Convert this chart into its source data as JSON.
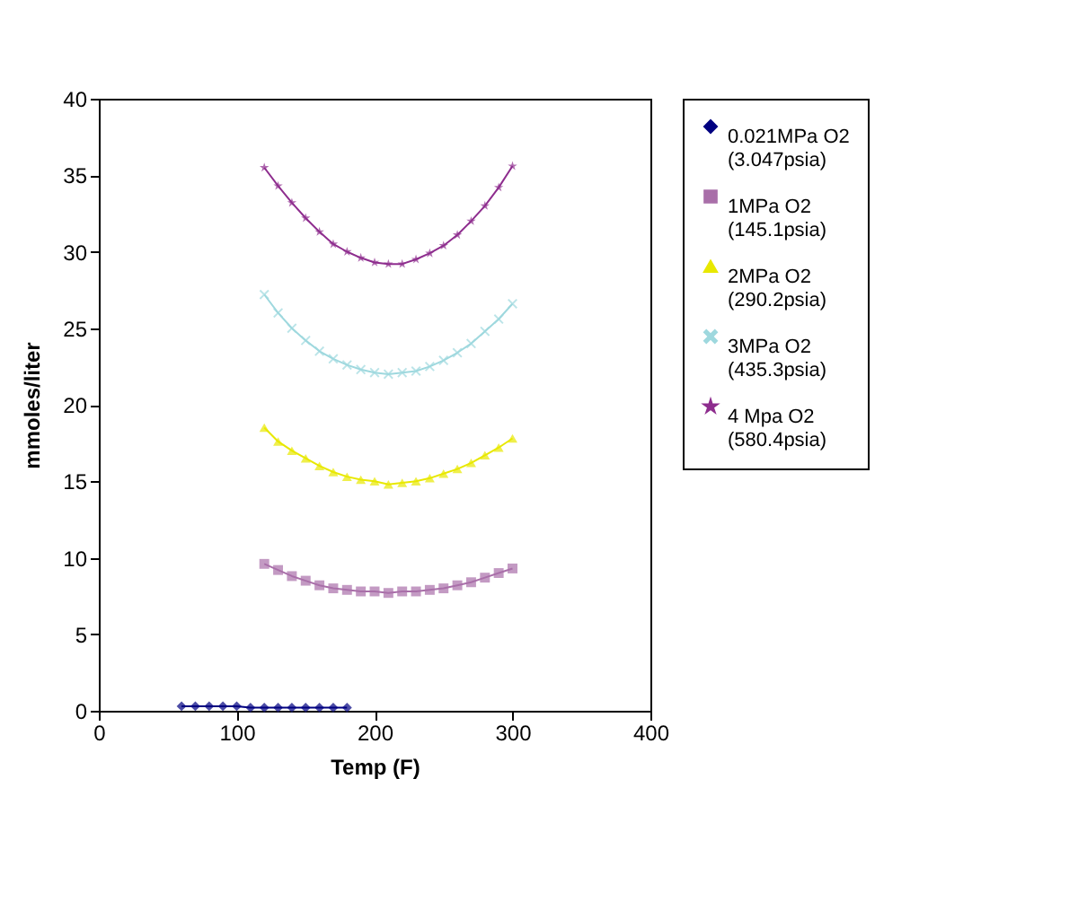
{
  "chart_data": {
    "type": "line",
    "xlabel": "Temp (F)",
    "ylabel": "mmoles/liter",
    "xlim": [
      0,
      400
    ],
    "xticks": [
      0,
      100,
      200,
      300,
      400
    ],
    "ylim": [
      0,
      40
    ],
    "yticks": [
      0,
      5,
      10,
      15,
      20,
      25,
      30,
      35,
      40
    ],
    "grid": false,
    "legend": "right",
    "series": [
      {
        "name": "0.021MPa O2 (3.047psia)",
        "color": "#000080",
        "marker": "diamond",
        "x": [
          60,
          70,
          80,
          90,
          100,
          110,
          120,
          130,
          140,
          150,
          160,
          170,
          180
        ],
        "values": [
          0.3,
          0.3,
          0.3,
          0.3,
          0.3,
          0.2,
          0.2,
          0.2,
          0.2,
          0.2,
          0.2,
          0.2,
          0.2
        ]
      },
      {
        "name": "1MPa O2 (145.1psia)",
        "color": "#a96fa9",
        "marker": "square",
        "x": [
          120,
          130,
          140,
          150,
          160,
          170,
          180,
          190,
          200,
          210,
          220,
          230,
          240,
          250,
          260,
          270,
          280,
          290,
          300
        ],
        "values": [
          9.6,
          9.2,
          8.8,
          8.5,
          8.2,
          8.0,
          7.9,
          7.8,
          7.8,
          7.7,
          7.8,
          7.8,
          7.9,
          8.0,
          8.2,
          8.4,
          8.7,
          9.0,
          9.3
        ]
      },
      {
        "name": "2MPa O2 (290.2psia)",
        "color": "#e8e800",
        "marker": "triangle",
        "x": [
          120,
          130,
          140,
          150,
          160,
          170,
          180,
          190,
          200,
          210,
          220,
          230,
          240,
          250,
          260,
          270,
          280,
          290,
          300
        ],
        "values": [
          18.5,
          17.6,
          17.0,
          16.5,
          16.0,
          15.6,
          15.3,
          15.1,
          15.0,
          14.8,
          14.9,
          15.0,
          15.2,
          15.5,
          15.8,
          16.2,
          16.7,
          17.2,
          17.8
        ]
      },
      {
        "name": "3MPa O2 (435.3psia)",
        "color": "#9ed8de",
        "marker": "cross",
        "x": [
          120,
          130,
          140,
          150,
          160,
          170,
          180,
          190,
          200,
          210,
          220,
          230,
          240,
          250,
          260,
          270,
          280,
          290,
          300
        ],
        "values": [
          27.2,
          26.0,
          25.0,
          24.2,
          23.5,
          23.0,
          22.6,
          22.3,
          22.1,
          22.0,
          22.1,
          22.2,
          22.5,
          22.9,
          23.4,
          24.0,
          24.8,
          25.6,
          26.6
        ]
      },
      {
        "name": "4 Mpa O2 (580.4psia)",
        "color": "#8e2d8e",
        "marker": "star",
        "x": [
          120,
          130,
          140,
          150,
          160,
          170,
          180,
          190,
          200,
          210,
          220,
          230,
          240,
          250,
          260,
          270,
          280,
          290,
          300
        ],
        "values": [
          35.5,
          34.3,
          33.2,
          32.2,
          31.3,
          30.5,
          30.0,
          29.6,
          29.3,
          29.2,
          29.2,
          29.5,
          29.9,
          30.4,
          31.1,
          32.0,
          33.0,
          34.2,
          35.6
        ]
      }
    ]
  }
}
